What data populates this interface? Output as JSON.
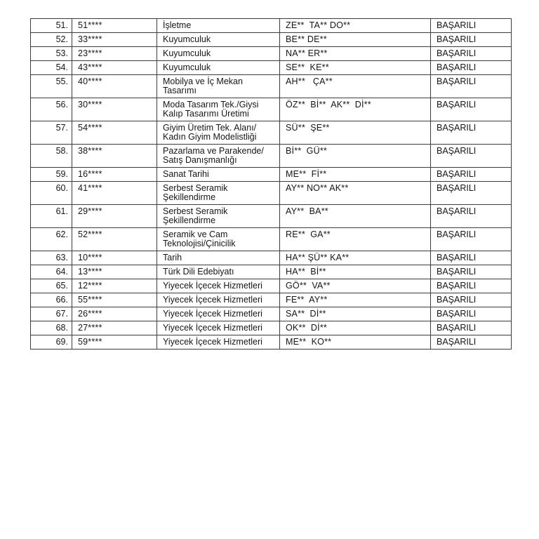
{
  "page": {
    "background_color": "#ffffff",
    "text_color": "#161616",
    "border_color": "#3d3d3d"
  },
  "table": {
    "columns": [
      "row_number",
      "masked_id",
      "department",
      "masked_name",
      "status"
    ],
    "rows": [
      {
        "no": "51.",
        "id": "51****",
        "department": "İşletme",
        "name": "ZE**  TA** DO**",
        "status": "BAŞARILI"
      },
      {
        "no": "52.",
        "id": "33****",
        "department": "Kuyumculuk",
        "name": "BE** DE**",
        "status": "BAŞARILI"
      },
      {
        "no": "53.",
        "id": "23****",
        "department": "Kuyumculuk",
        "name": "NA** ER**",
        "status": "BAŞARILI"
      },
      {
        "no": "54.",
        "id": "43****",
        "department": "Kuyumculuk",
        "name": "SE**  KE**",
        "status": "BAŞARILI"
      },
      {
        "no": "55.",
        "id": "40****",
        "department": "Mobilya ve İç Mekan\nTasarımı",
        "name": "AH**   ÇA**",
        "status": "BAŞARILI"
      },
      {
        "no": "56.",
        "id": "30****",
        "department": "Moda Tasarım Tek./Giysi\nKalıp Tasarımı Üretimi",
        "name": "ÖZ**  Bİ**  AK**  Dİ**",
        "status": "BAŞARILI"
      },
      {
        "no": "57.",
        "id": "54****",
        "department": "Giyim Üretim Tek. Alanı/\nKadın Giyim Modelistliği",
        "name": "SÜ**  ŞE**",
        "status": "BAŞARILI"
      },
      {
        "no": "58.",
        "id": "38****",
        "department": "Pazarlama ve Parakende/\nSatış Danışmanlığı",
        "name": "Bİ**  GÜ**",
        "status": "BAŞARILI"
      },
      {
        "no": "59.",
        "id": "16****",
        "department": "Sanat Tarihi",
        "name": "ME**  Fİ**",
        "status": "BAŞARILI"
      },
      {
        "no": "60.",
        "id": "41****",
        "department": "Serbest Seramik\nŞekillendirme",
        "name": "AY** NO** AK**",
        "status": "BAŞARILI"
      },
      {
        "no": "61.",
        "id": "29****",
        "department": "Serbest Seramik\nŞekillendirme",
        "name": "AY**  BA**",
        "status": "BAŞARILI"
      },
      {
        "no": "62.",
        "id": "52****",
        "department": "Seramik ve Cam\nTeknolojisi/Çinicilik",
        "name": "RE**  GA**",
        "status": "BAŞARILI"
      },
      {
        "no": "63.",
        "id": "10****",
        "department": "Tarih",
        "name": "HA** ŞÜ** KA**",
        "status": "BAŞARILI"
      },
      {
        "no": "64.",
        "id": "13****",
        "department": "Türk Dili Edebiyatı",
        "name": "HA**  Bİ**",
        "status": "BAŞARILI"
      },
      {
        "no": "65.",
        "id": "12****",
        "department": "Yiyecek İçecek Hizmetleri",
        "name": "GÖ**  VA**",
        "status": "BAŞARILI"
      },
      {
        "no": "66.",
        "id": "55****",
        "department": "Yiyecek İçecek Hizmetleri",
        "name": "FE**  AY**",
        "status": "BAŞARILI"
      },
      {
        "no": "67.",
        "id": "26****",
        "department": "Yiyecek İçecek Hizmetleri",
        "name": "SA**  Dİ**",
        "status": "BAŞARILI"
      },
      {
        "no": "68.",
        "id": "27****",
        "department": "Yiyecek İçecek Hizmetleri",
        "name": "OK**  Dİ**",
        "status": "BAŞARILI"
      },
      {
        "no": "69.",
        "id": "59****",
        "department": "Yiyecek İçecek Hizmetleri",
        "name": "ME**  KO**",
        "status": "BAŞARILI"
      }
    ]
  }
}
